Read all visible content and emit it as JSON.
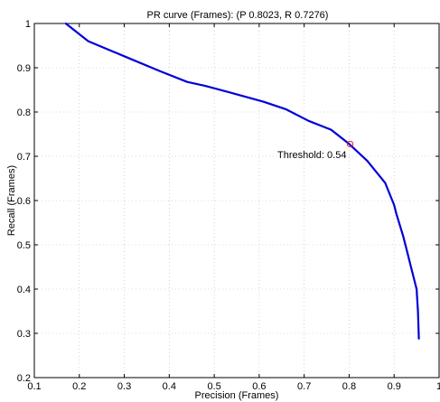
{
  "chart_data": {
    "type": "line",
    "title": "PR curve (Frames): (P 0.8023, R 0.7276)",
    "xlabel": "Precision (Frames)",
    "ylabel": "Recall (Frames)",
    "xlim": [
      0.1,
      1
    ],
    "ylim": [
      0.2,
      1
    ],
    "xticks": [
      0.1,
      0.2,
      0.3,
      0.4,
      0.5,
      0.6,
      0.7,
      0.8,
      0.9,
      1
    ],
    "yticks": [
      0.2,
      0.3,
      0.4,
      0.5,
      0.6,
      0.7,
      0.8,
      0.9,
      1
    ],
    "xtick_labels": [
      "0.1",
      "0.2",
      "0.3",
      "0.4",
      "0.5",
      "0.6",
      "0.7",
      "0.8",
      "0.9",
      "1"
    ],
    "ytick_labels": [
      "0.2",
      "0.3",
      "0.4",
      "0.5",
      "0.6",
      "0.7",
      "0.8",
      "0.9",
      "1"
    ],
    "grid": true,
    "series": [
      {
        "color": "#0000d8",
        "x": [
          0.17,
          0.22,
          0.3,
          0.38,
          0.44,
          0.48,
          0.55,
          0.61,
          0.66,
          0.71,
          0.76,
          0.8,
          0.84,
          0.88,
          0.9,
          0.905,
          0.92,
          0.93,
          0.94,
          0.95,
          0.953,
          0.955
        ],
        "y": [
          1.0,
          0.96,
          0.926,
          0.892,
          0.868,
          0.859,
          0.84,
          0.823,
          0.806,
          0.78,
          0.76,
          0.728,
          0.69,
          0.64,
          0.59,
          0.57,
          0.52,
          0.48,
          0.44,
          0.4,
          0.35,
          0.288
        ]
      }
    ],
    "operating_point": {
      "x": 0.8023,
      "y": 0.7276,
      "color": "#ff0000"
    },
    "annotation": {
      "text": "Threshold: 0.54",
      "x": 0.8023,
      "y": 0.7276
    }
  }
}
